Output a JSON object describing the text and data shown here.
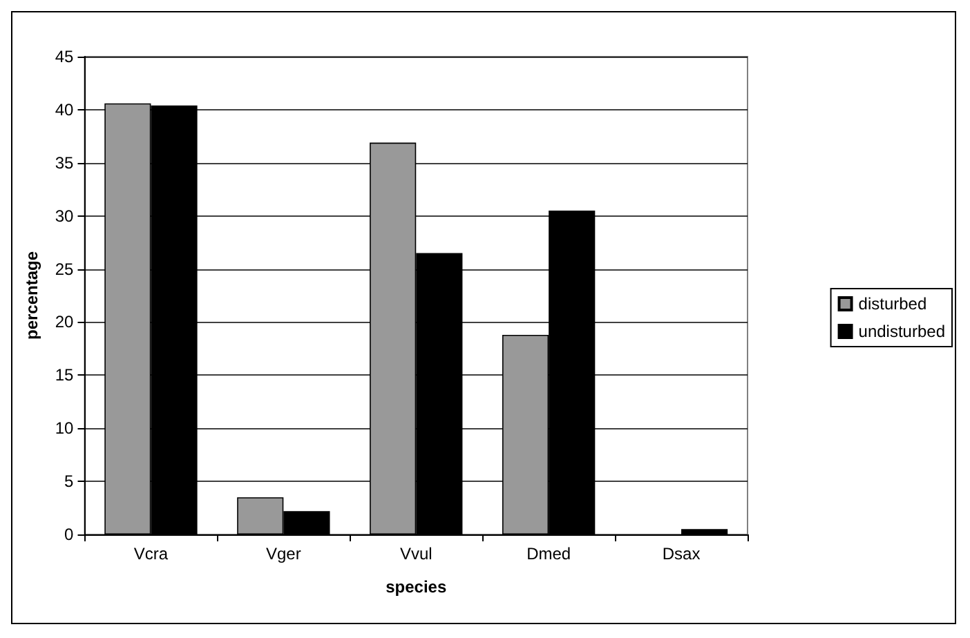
{
  "chart_data": {
    "type": "bar",
    "xlabel": "species",
    "ylabel": "percentage",
    "categories": [
      "Vcra",
      "Vger",
      "Vvul",
      "Dmed",
      "Dsax"
    ],
    "series": [
      {
        "name": "disturbed",
        "color": "#999999",
        "values": [
          40.6,
          3.5,
          36.9,
          18.8,
          0
        ]
      },
      {
        "name": "undisturbed",
        "color": "#000000",
        "values": [
          40.4,
          2.2,
          26.5,
          30.5,
          0.5
        ]
      }
    ],
    "ylim": [
      0,
      45
    ],
    "yticks": [
      0,
      5,
      10,
      15,
      20,
      25,
      30,
      35,
      40,
      45
    ],
    "grid": "y",
    "legend": "right"
  }
}
